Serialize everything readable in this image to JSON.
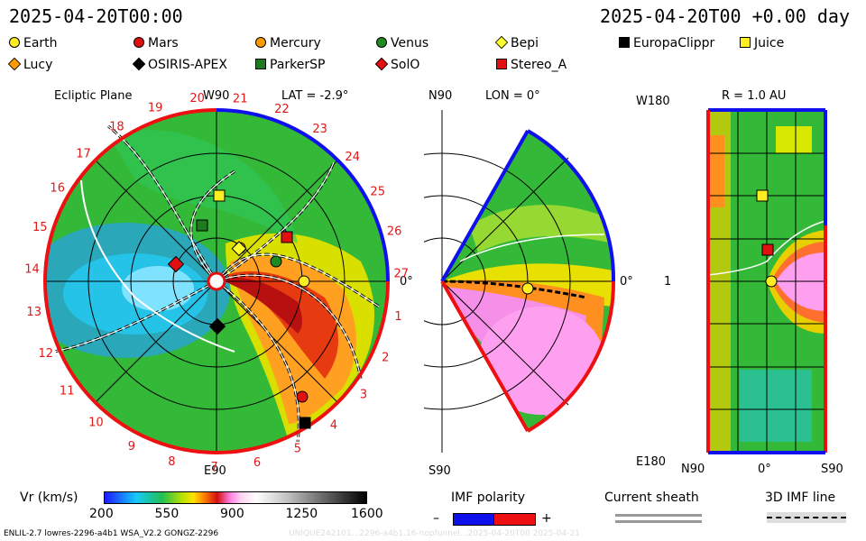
{
  "header": {
    "datetime_left": "2025-04-20T00:00",
    "datetime_right": "2025-04-20T00 +0.00 day"
  },
  "legend": {
    "bodies": [
      {
        "name": "Earth",
        "shape": "circle",
        "color": "#ffee22"
      },
      {
        "name": "Mars",
        "shape": "circle",
        "color": "#e01010"
      },
      {
        "name": "Mercury",
        "shape": "circle",
        "color": "#ff9a00"
      },
      {
        "name": "Venus",
        "shape": "circle",
        "color": "#1f8a1f"
      },
      {
        "name": "Bepi",
        "shape": "diamond",
        "color": "#ffff30"
      },
      {
        "name": "EuropaClippr",
        "shape": "square",
        "color": "#000000"
      },
      {
        "name": "Juice",
        "shape": "square",
        "color": "#ffee22"
      },
      {
        "name": "Lucy",
        "shape": "diamond",
        "color": "#ff9a00"
      },
      {
        "name": "OSIRIS-APEX",
        "shape": "diamond",
        "color": "#000000"
      },
      {
        "name": "ParkerSP",
        "shape": "square",
        "color": "#1f7a1f"
      },
      {
        "name": "SolO",
        "shape": "diamond",
        "color": "#e01010"
      },
      {
        "name": "Stereo_A",
        "shape": "square",
        "color": "#e01010"
      }
    ]
  },
  "panel_ecliptic": {
    "title": "Ecliptic Plane",
    "top_label": "W90",
    "lat_label": "LAT = -2.9°",
    "right_label": "0°",
    "bottom_label": "E90",
    "carrington_numbers": [
      "1",
      "2",
      "3",
      "4",
      "5",
      "6",
      "7",
      "8",
      "9",
      "10",
      "11",
      "12",
      "13",
      "14",
      "15",
      "16",
      "17",
      "18",
      "19",
      "20",
      "21",
      "22",
      "23",
      "24",
      "25",
      "26",
      "27"
    ]
  },
  "panel_meridional": {
    "top_label": "N90",
    "lon_label": "LON = 0°",
    "right_label": "0°",
    "bottom_label": "S90"
  },
  "panel_radial": {
    "r_label": "R = 1.0 AU",
    "top_left_label": "W180",
    "mid_left_label": "1",
    "bottom_left_label": "E180",
    "x_left_label": "N90",
    "x_mid_label": "0°",
    "x_right_label": "S90"
  },
  "colorbar": {
    "label": "Vr (km/s)",
    "ticks": [
      "200",
      "550",
      "900",
      "1250",
      "1600"
    ]
  },
  "imf": {
    "label": "IMF polarity",
    "minus": "–",
    "plus": "+",
    "neg_color": "#1010ee",
    "pos_color": "#ee1010"
  },
  "sheath": {
    "label": "Current sheath"
  },
  "imf_line": {
    "label": "3D IMF line"
  },
  "footer": {
    "model_info": "ENLIL-2.7 lowres-2296-a4b1 WSA_V2.2 GONGZ-2296",
    "watermark": "UNIQUE242101...2296-a4b1.16-nopfunnel...2025-04-20T00 2025-04-21"
  }
}
